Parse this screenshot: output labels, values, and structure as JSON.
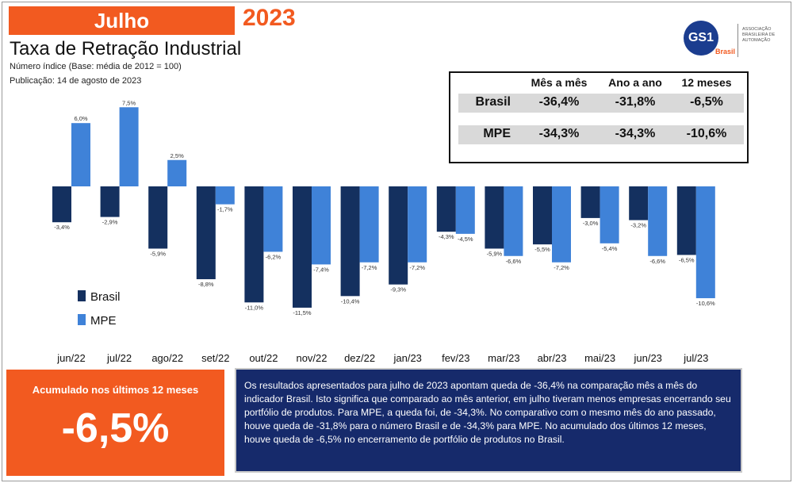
{
  "header": {
    "month": "Julho",
    "year": "2023",
    "title": "Taxa de Retração Industrial",
    "subtitle": "Número índice (Base: média de 2012 = 100)",
    "publication": "Publicação: 14 de agosto de 2023"
  },
  "logo": {
    "mark": "GS1",
    "country": "Brasil",
    "association": "ASSOCIAÇÃO BRASILEIRA DE AUTOMAÇÃO",
    "icon": "gs1-logo-icon"
  },
  "summary_table": {
    "columns": [
      "Mês a mês",
      "Ano a ano",
      "12 meses"
    ],
    "rows": [
      {
        "label": "Brasil",
        "values": [
          "-36,4%",
          "-31,8%",
          "-6,5%"
        ]
      },
      {
        "label": "MPE",
        "values": [
          "-34,3%",
          "-34,3%",
          "-10,6%"
        ]
      }
    ]
  },
  "chart_data": {
    "type": "bar",
    "categories": [
      "jun/22",
      "jul/22",
      "ago/22",
      "set/22",
      "out/22",
      "nov/22",
      "dez/22",
      "jan/23",
      "fev/23",
      "mar/23",
      "abr/23",
      "mai/23",
      "jun/23",
      "jul/23"
    ],
    "series": [
      {
        "name": "Brasil",
        "color": "#14305f",
        "values": [
          -3.4,
          -2.9,
          -5.9,
          -8.8,
          -11.0,
          -11.5,
          -10.4,
          -9.3,
          -4.3,
          -5.9,
          -5.5,
          -3.0,
          -3.2,
          -6.5
        ],
        "labels": [
          "-3,4%",
          "-2,9%",
          "-5,9%",
          "-8,8%",
          "-11,0%",
          "-11,5%",
          "-10,4%",
          "-9,3%",
          "-4,3%",
          "-5,9%",
          "-5,5%",
          "-3,0%",
          "-3,2%",
          "-6,5%"
        ]
      },
      {
        "name": "MPE",
        "color": "#3f82d8",
        "values": [
          6.0,
          7.5,
          2.5,
          -1.7,
          -6.2,
          -7.4,
          -7.2,
          -7.2,
          -4.5,
          -6.6,
          -7.2,
          -5.4,
          -6.6,
          -10.6
        ],
        "labels": [
          "6,0%",
          "7,5%",
          "2,5%",
          "-1,7%",
          "-6,2%",
          "-7,4%",
          "-7,2%",
          "-7,2%",
          "-4,5%",
          "-6,6%",
          "-7,2%",
          "-5,4%",
          "-6,6%",
          "-10,6%"
        ]
      }
    ],
    "ylim": [
      -12,
      8
    ],
    "legend": "left",
    "grid": false,
    "xlabel": "",
    "ylabel": ""
  },
  "accumulated": {
    "label": "Acumulado nos últimos 12 meses",
    "value": "-6,5%"
  },
  "note": "Os resultados apresentados para julho de 2023 apontam queda de -36,4% na comparação mês a mês do indicador Brasil. Isto significa que comparado ao mês anterior, em julho tiveram menos empresas encerrando seu portfólio de produtos. Para MPE, a queda foi, de -34,3%. No comparativo com o mesmo mês do ano passado, houve queda de -31,8% para o número Brasil e de -34,3% para MPE. No acumulado dos últimos 12 meses, houve queda de -6,5% no encerramento de portfólio de produtos no Brasil."
}
